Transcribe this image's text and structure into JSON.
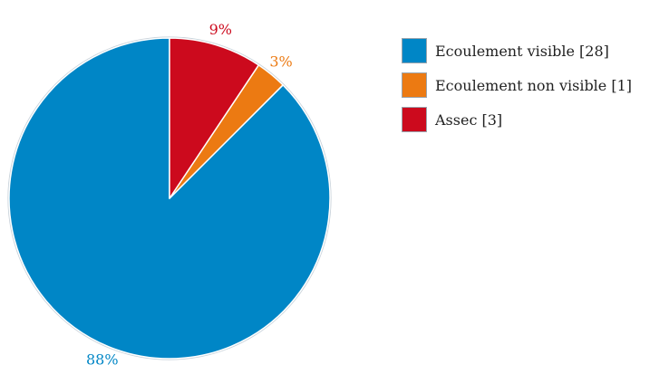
{
  "chart_data": {
    "type": "pie",
    "title": "",
    "start_angle_deg": 0,
    "direction": "counterclockwise",
    "slice_border_color": "#ffffff",
    "outline_color": "#c8d2da",
    "series": [
      {
        "name": "Ecoulement visible",
        "legend_label": "Ecoulement visible [28]",
        "count": 28,
        "percent_label": "88%",
        "color": "#0086c6"
      },
      {
        "name": "Ecoulement non visible",
        "legend_label": "Ecoulement non visible [1]",
        "count": 1,
        "percent_label": "3%",
        "color": "#ec7a12"
      },
      {
        "name": "Assec",
        "legend_label": "Assec [3]",
        "count": 3,
        "percent_label": "9%",
        "color": "#cc0a1d"
      }
    ],
    "legend_position": "right"
  }
}
